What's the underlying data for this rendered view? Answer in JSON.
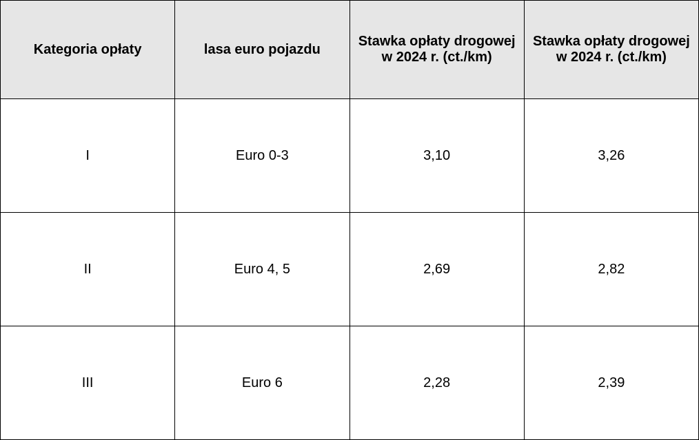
{
  "table": {
    "border_color": "#000000",
    "header_bg": "#e6e6e6",
    "body_bg": "#ffffff",
    "text_color": "#000000",
    "header_fontsize": 20,
    "body_fontsize": 20,
    "columns": [
      "Kategoria opłaty",
      "lasa euro pojazdu",
      "Stawka opłaty drogowej w 2024 r. (ct./km)",
      "Stawka opłaty drogowej w 2024 r. (ct./km)"
    ],
    "rows": [
      [
        "I",
        "Euro 0-3",
        "3,10",
        "3,26"
      ],
      [
        "II",
        "Euro 4, 5",
        "2,69",
        "2,82"
      ],
      [
        "III",
        "Euro 6",
        "2,28",
        "2,39"
      ]
    ]
  }
}
